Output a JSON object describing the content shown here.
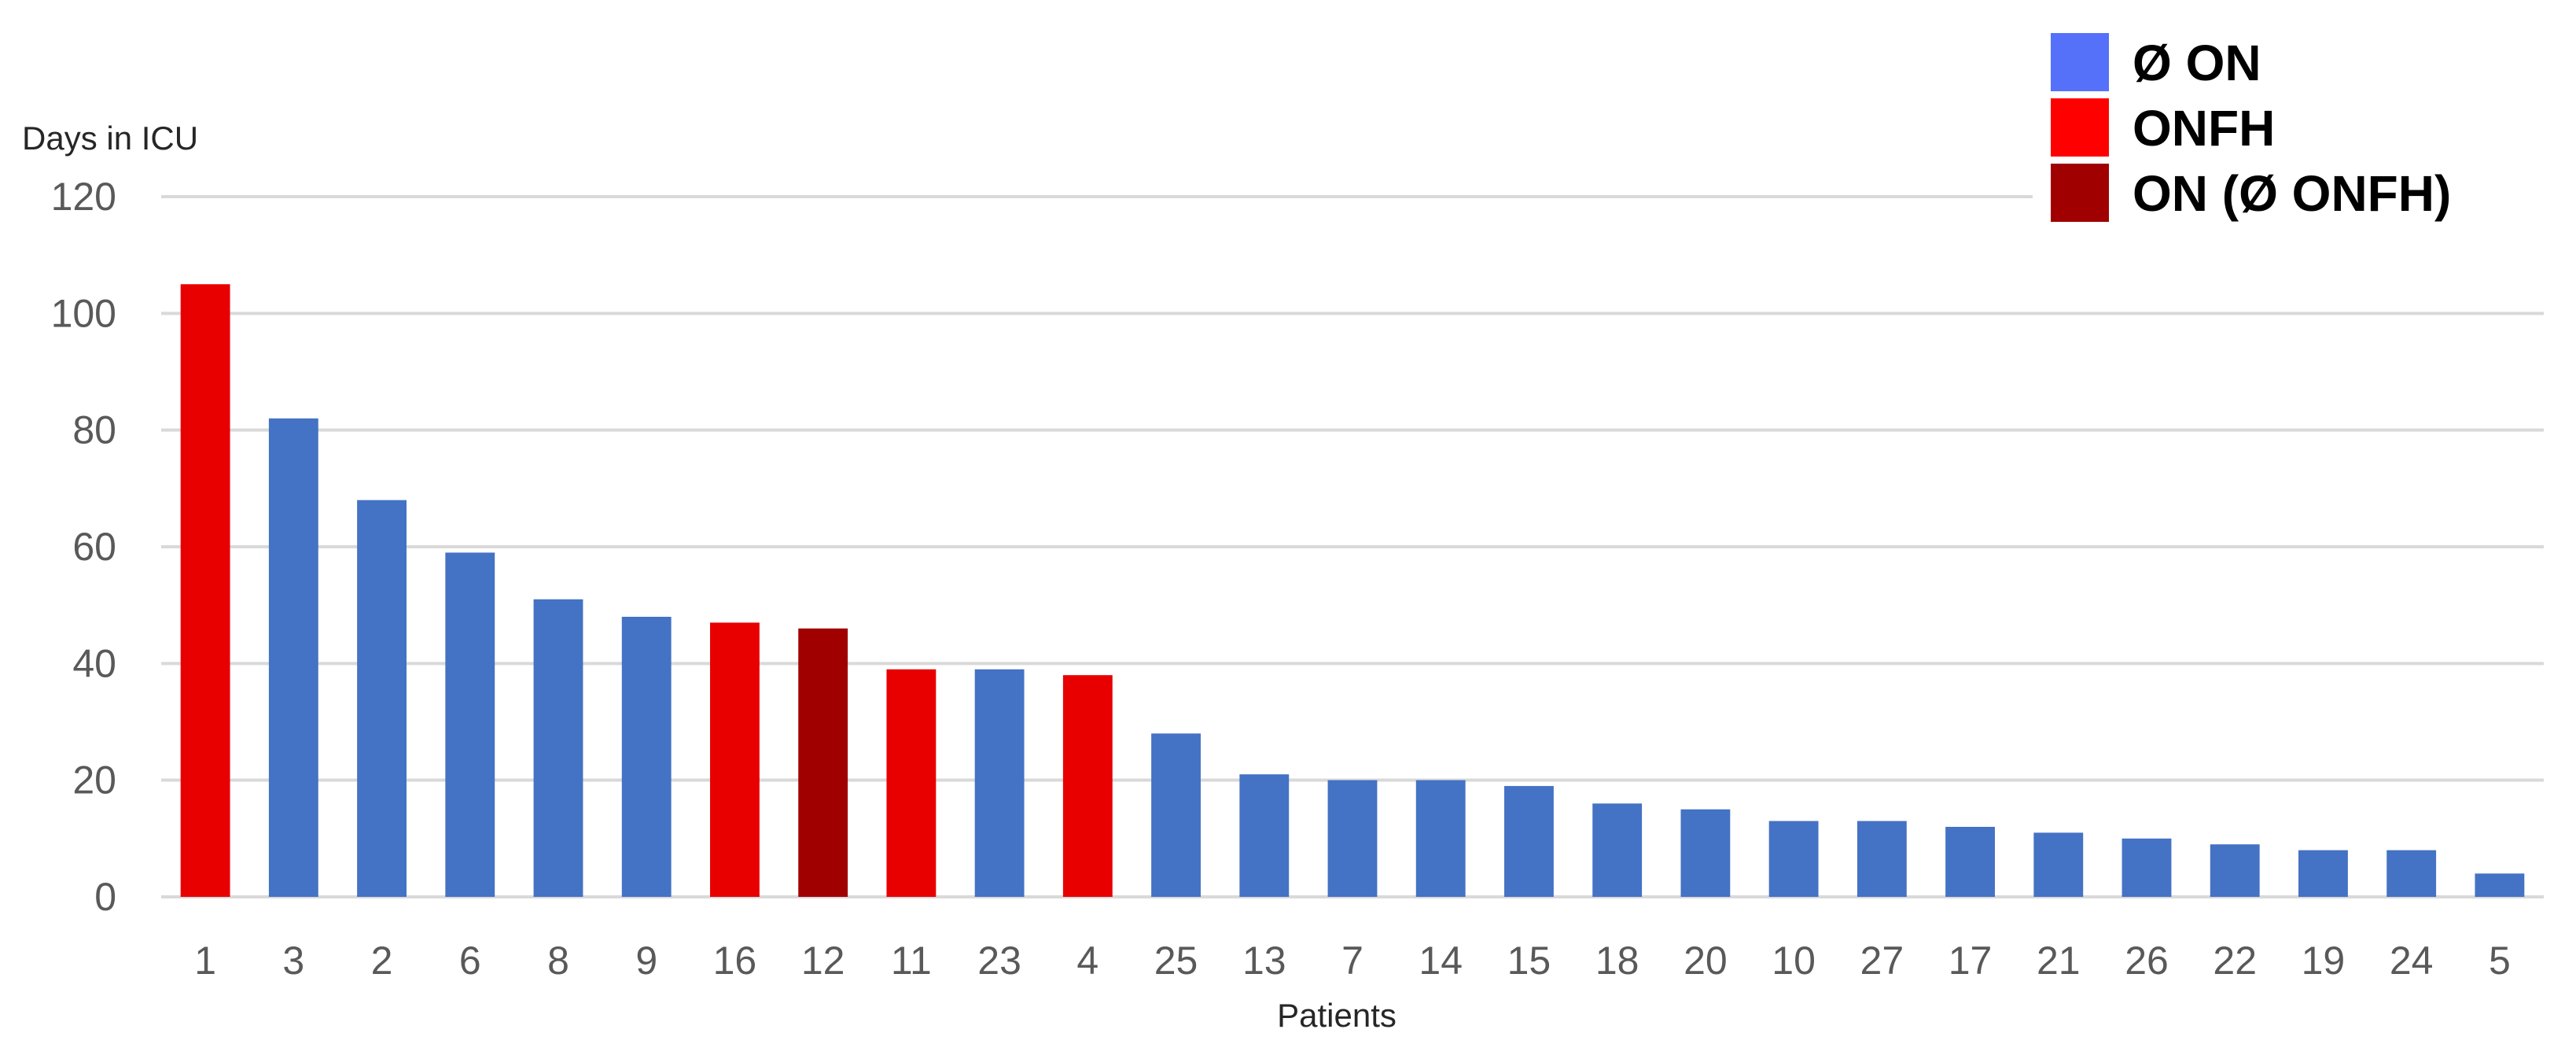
{
  "chart_data": {
    "type": "bar",
    "xlabel": "Patients",
    "ylabel": "Days in ICU",
    "ylim": [
      0,
      120
    ],
    "yticks": [
      0,
      20,
      40,
      60,
      80,
      100,
      120
    ],
    "grid": true,
    "legend_position": "top-right",
    "categories": [
      "1",
      "3",
      "2",
      "6",
      "8",
      "9",
      "16",
      "12",
      "11",
      "23",
      "4",
      "25",
      "13",
      "7",
      "14",
      "15",
      "18",
      "20",
      "10",
      "27",
      "17",
      "21",
      "26",
      "22",
      "19",
      "24",
      "5"
    ],
    "values": [
      105,
      82,
      68,
      59,
      51,
      48,
      47,
      46,
      39,
      39,
      38,
      28,
      21,
      20,
      20,
      19,
      16,
      15,
      13,
      13,
      12,
      11,
      10,
      9,
      8,
      8,
      4
    ],
    "groups": [
      "ONFH",
      "Ø ON",
      "Ø ON",
      "Ø ON",
      "Ø ON",
      "Ø ON",
      "ONFH",
      "ON  (Ø ONFH)",
      "ONFH",
      "Ø ON",
      "ONFH",
      "Ø ON",
      "Ø ON",
      "Ø ON",
      "Ø ON",
      "Ø ON",
      "Ø ON",
      "Ø ON",
      "Ø ON",
      "Ø ON",
      "Ø ON",
      "Ø ON",
      "Ø ON",
      "Ø ON",
      "Ø ON",
      "Ø ON",
      "Ø ON"
    ],
    "legend": [
      {
        "name": "Ø ON",
        "color": "#5571fa",
        "bar_color": "#4472c4"
      },
      {
        "name": "ONFH",
        "color": "#ff0000",
        "bar_color": "#e80000"
      },
      {
        "name": "ON  (Ø ONFH)",
        "color": "#a00000",
        "bar_color": "#a00000"
      }
    ]
  }
}
